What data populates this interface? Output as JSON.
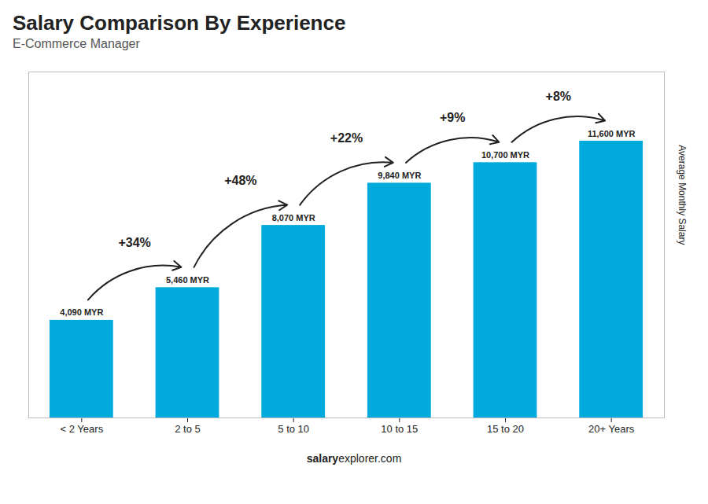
{
  "chart_data": {
    "type": "bar",
    "title": "Salary Comparison By Experience",
    "subtitle": "E-Commerce Manager",
    "categories": [
      "< 2 Years",
      "2 to 5",
      "5 to 10",
      "10 to 15",
      "15 to 20",
      "20+ Years"
    ],
    "values": [
      4090,
      5460,
      8070,
      9840,
      10700,
      11600
    ],
    "value_labels": [
      "4,090 MYR",
      "5,460 MYR",
      "8,070 MYR",
      "9,840 MYR",
      "10,700 MYR",
      "11,600 MYR"
    ],
    "data_labels": true,
    "color": "#00aadd",
    "ylim": [
      0,
      14500
    ],
    "ylabel": "Average Monthly Salary",
    "tick_labels": "x",
    "grid": false,
    "annotations": [
      "+34%",
      "+48%",
      "+22%",
      "+9%",
      "+8%"
    ],
    "footer": [
      "salary",
      "explorer.com"
    ]
  }
}
